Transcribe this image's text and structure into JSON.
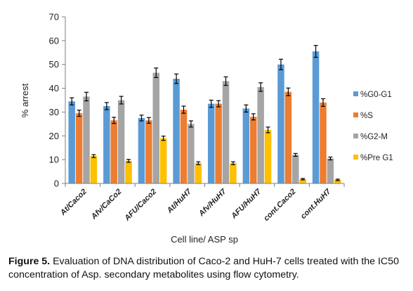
{
  "chart_data": {
    "type": "bar",
    "title": "",
    "xlabel": "Cell line/ ASP sp",
    "ylabel": "% arrest",
    "ylim": [
      0,
      70
    ],
    "yticks": [
      0,
      10,
      20,
      30,
      40,
      50,
      60,
      70
    ],
    "grid": false,
    "legend_position": "right",
    "categories": [
      "At/Caco2",
      "Afv/CaCo2",
      "AFU/Caco2",
      "At/HuH7",
      "Afv/HuH7",
      "AFU/HuH7",
      "cont.Caco2",
      "cont.HuH7"
    ],
    "series": [
      {
        "name": "%G0-G1",
        "color": "#5B9BD5",
        "values": [
          34.5,
          32.5,
          27.5,
          44,
          33.5,
          31.5,
          50,
          55.5
        ],
        "errors": [
          1.5,
          1.5,
          1.2,
          2.0,
          1.5,
          1.5,
          2.2,
          2.5
        ]
      },
      {
        "name": "%S",
        "color": "#ED7D31",
        "values": [
          29.5,
          26.5,
          26.5,
          31,
          33.5,
          28,
          38.5,
          34
        ],
        "errors": [
          1.3,
          1.3,
          1.2,
          1.5,
          1.3,
          1.3,
          1.6,
          1.6
        ]
      },
      {
        "name": "%G2-M",
        "color": "#A5A5A5",
        "values": [
          36.5,
          35,
          46.5,
          25,
          43,
          40.5,
          12,
          10.5
        ],
        "errors": [
          1.8,
          1.6,
          2.0,
          1.3,
          1.8,
          1.8,
          0.6,
          0.6
        ]
      },
      {
        "name": "%Pre G1",
        "color": "#FFC000",
        "values": [
          11.5,
          9.5,
          19,
          8.5,
          8.5,
          22.5,
          1.8,
          1.5
        ],
        "errors": [
          0.6,
          0.6,
          0.9,
          0.6,
          0.6,
          1.2,
          0.3,
          0.3
        ]
      }
    ]
  },
  "caption": {
    "label": "Figure 5.",
    "text": " Evaluation of DNA distribution of Caco-2 and HuH-7 cells treated with the IC50 concentration of Asp. secondary metabolites using flow cytometry."
  }
}
